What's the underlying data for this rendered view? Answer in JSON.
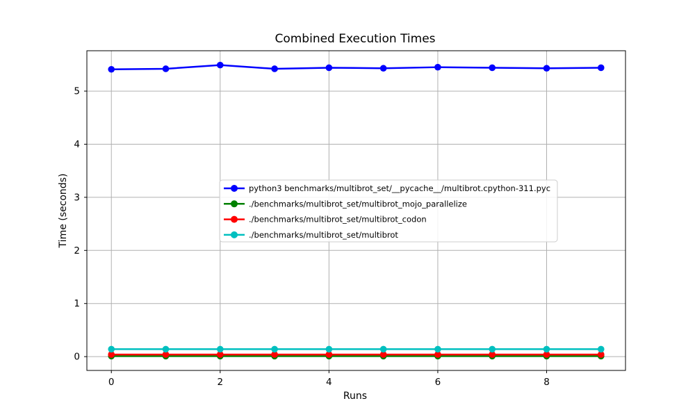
{
  "chart_data": {
    "type": "line",
    "title": "Combined Execution Times",
    "xlabel": "Runs",
    "ylabel": "Time (seconds)",
    "x": [
      0,
      1,
      2,
      3,
      4,
      5,
      6,
      7,
      8,
      9
    ],
    "xticks": [
      0,
      2,
      4,
      6,
      8
    ],
    "yticks": [
      0,
      1,
      2,
      3,
      4,
      5
    ],
    "xlim": [
      -0.45,
      9.45
    ],
    "ylim": [
      -0.26,
      5.76
    ],
    "grid": true,
    "legend_position": "center-left-inside",
    "series": [
      {
        "name": "python3 benchmarks/multibrot_set/__pycache__/multibrot.cpython-311.pyc",
        "color": "#0000ff",
        "values": [
          5.41,
          5.42,
          5.49,
          5.42,
          5.44,
          5.43,
          5.45,
          5.44,
          5.43,
          5.44
        ]
      },
      {
        "name": "./benchmarks/multibrot_set/multibrot_mojo_parallelize",
        "color": "#008000",
        "values": [
          0.01,
          0.01,
          0.01,
          0.01,
          0.01,
          0.01,
          0.01,
          0.01,
          0.01,
          0.01
        ]
      },
      {
        "name": "./benchmarks/multibrot_set/multibrot_codon",
        "color": "#ff0000",
        "values": [
          0.04,
          0.04,
          0.04,
          0.04,
          0.04,
          0.04,
          0.04,
          0.04,
          0.04,
          0.04
        ]
      },
      {
        "name": "./benchmarks/multibrot_set/multibrot",
        "color": "#00bfbf",
        "values": [
          0.14,
          0.14,
          0.14,
          0.14,
          0.14,
          0.14,
          0.14,
          0.14,
          0.14,
          0.14
        ]
      }
    ]
  }
}
